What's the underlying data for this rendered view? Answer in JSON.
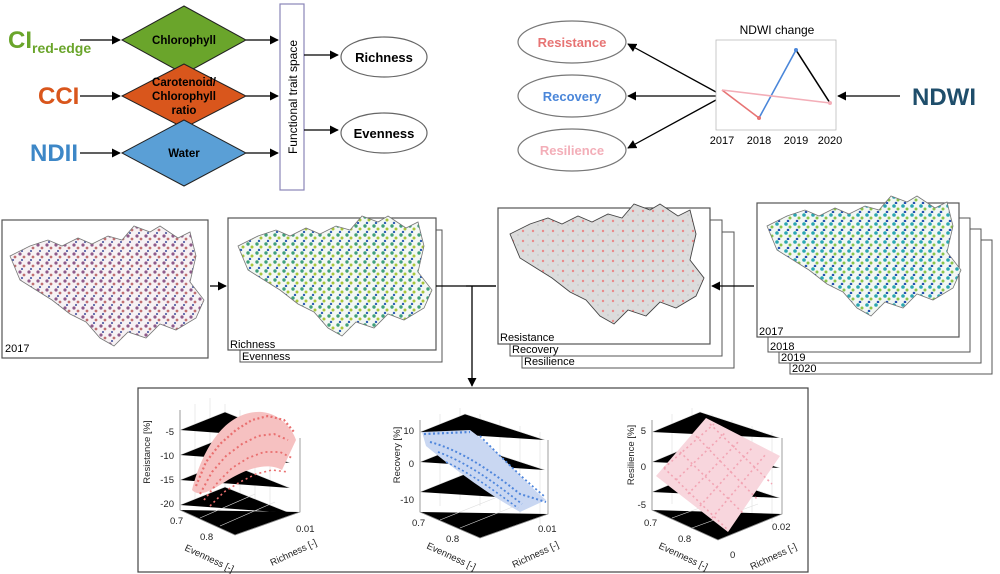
{
  "inputs": {
    "ci": {
      "main": "CI",
      "sub": "red-edge",
      "color": "#6aa52b"
    },
    "cci": {
      "label": "CCI",
      "color": "#d9561c"
    },
    "ndii": {
      "label": "NDII",
      "color": "#3d87c7"
    }
  },
  "traits": {
    "chlorophyll": {
      "label": "Chlorophyll",
      "color": "#6aa52b"
    },
    "carotenoid": {
      "line1": "Carotenoid/",
      "line2": "Chlorophyll",
      "line3": "ratio",
      "color": "#d9561c"
    },
    "water": {
      "label": "Water",
      "color": "#5a9fd6"
    }
  },
  "trait_space": {
    "label": "Functional trait space"
  },
  "diversity": {
    "richness": "Richness",
    "evenness": "Evenness"
  },
  "stability": {
    "resistance": {
      "label": "Resistance",
      "color": "#e77474"
    },
    "recovery": {
      "label": "Recovery",
      "color": "#4a86d9"
    },
    "resilience": {
      "label": "Resilience",
      "color": "#f3aeb8"
    }
  },
  "ndwi": {
    "label": "NDWI",
    "color": "#1f4e6b",
    "chart_title": "NDWI change",
    "years": [
      "2017",
      "2018",
      "2019",
      "2020"
    ]
  },
  "maps": {
    "single_year": "2017",
    "diversity_labels": [
      "Richness",
      "Evenness"
    ],
    "stability_labels": [
      "Resistance",
      "Recovery",
      "Resilience"
    ],
    "year_labels": [
      "2017",
      "2018",
      "2019",
      "2020"
    ]
  },
  "plots": [
    {
      "ylabel": "Resistance [%]",
      "xlabel": "Evenness [-]",
      "zlabel": "Richness [-]",
      "yticks": [
        "-5",
        "-10",
        "-15",
        "-20"
      ],
      "xticks": [
        "0.7",
        "0.8"
      ],
      "zticks": [
        "0.01"
      ],
      "color": "#e96f6f"
    },
    {
      "ylabel": "Recovery [%]",
      "xlabel": "Evenness [-]",
      "zlabel": "Richness [-]",
      "yticks": [
        "10",
        "0",
        "-10"
      ],
      "xticks": [
        "0.7",
        "0.8"
      ],
      "zticks": [
        "0.01"
      ],
      "color": "#4f86dc"
    },
    {
      "ylabel": "Resilience [%]",
      "xlabel": "Evenness [-]",
      "zlabel": "Richness [-]",
      "yticks": [
        "5",
        "0",
        "-5"
      ],
      "xticks": [
        "0.7",
        "0.8"
      ],
      "zticks": [
        "0.02",
        "0"
      ],
      "color": "#f2a5b4"
    }
  ]
}
